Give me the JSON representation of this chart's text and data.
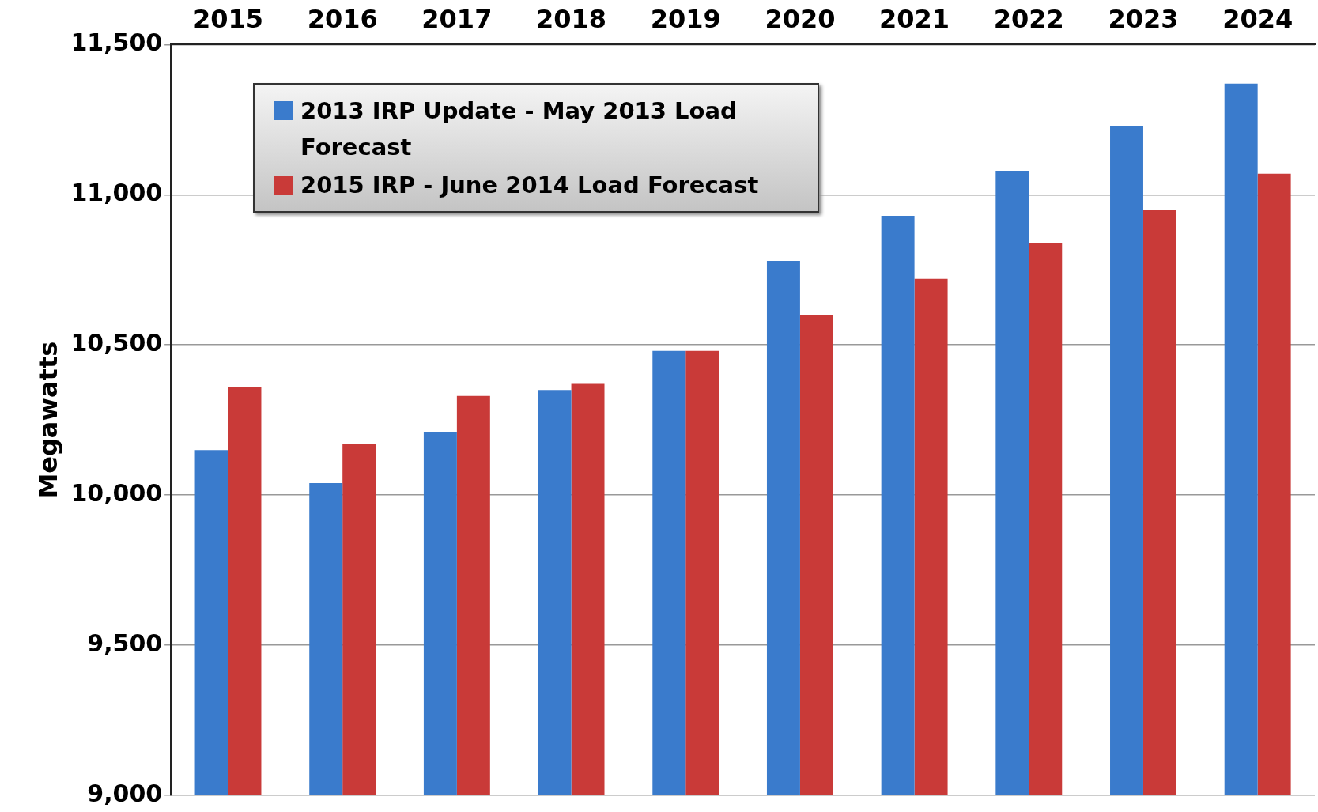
{
  "chart_data": {
    "type": "bar",
    "ylabel": "Megawatts",
    "categories": [
      "2015",
      "2016",
      "2017",
      "2018",
      "2019",
      "2020",
      "2021",
      "2022",
      "2023",
      "2024"
    ],
    "series": [
      {
        "name": "2013 IRP Update - May 2013 Load Forecast",
        "color": "#3a7bcc",
        "values": [
          10150,
          10040,
          10210,
          10350,
          10480,
          10780,
          10930,
          11080,
          11230,
          11370
        ]
      },
      {
        "name": "2015 IRP - June 2014 Load Forecast",
        "color": "#c93a38",
        "values": [
          10360,
          10170,
          10330,
          10370,
          10480,
          10600,
          10720,
          10840,
          10950,
          11070
        ]
      }
    ],
    "ylim": [
      9000,
      11500
    ],
    "yticks": [
      {
        "value": 9000,
        "label": "9,000"
      },
      {
        "value": 9500,
        "label": "9,500"
      },
      {
        "value": 10000,
        "label": "10,000"
      },
      {
        "value": 10500,
        "label": "10,500"
      },
      {
        "value": 11000,
        "label": "11,000"
      },
      {
        "value": 11500,
        "label": "11,500"
      }
    ],
    "grid": "y",
    "legend": "top left"
  }
}
